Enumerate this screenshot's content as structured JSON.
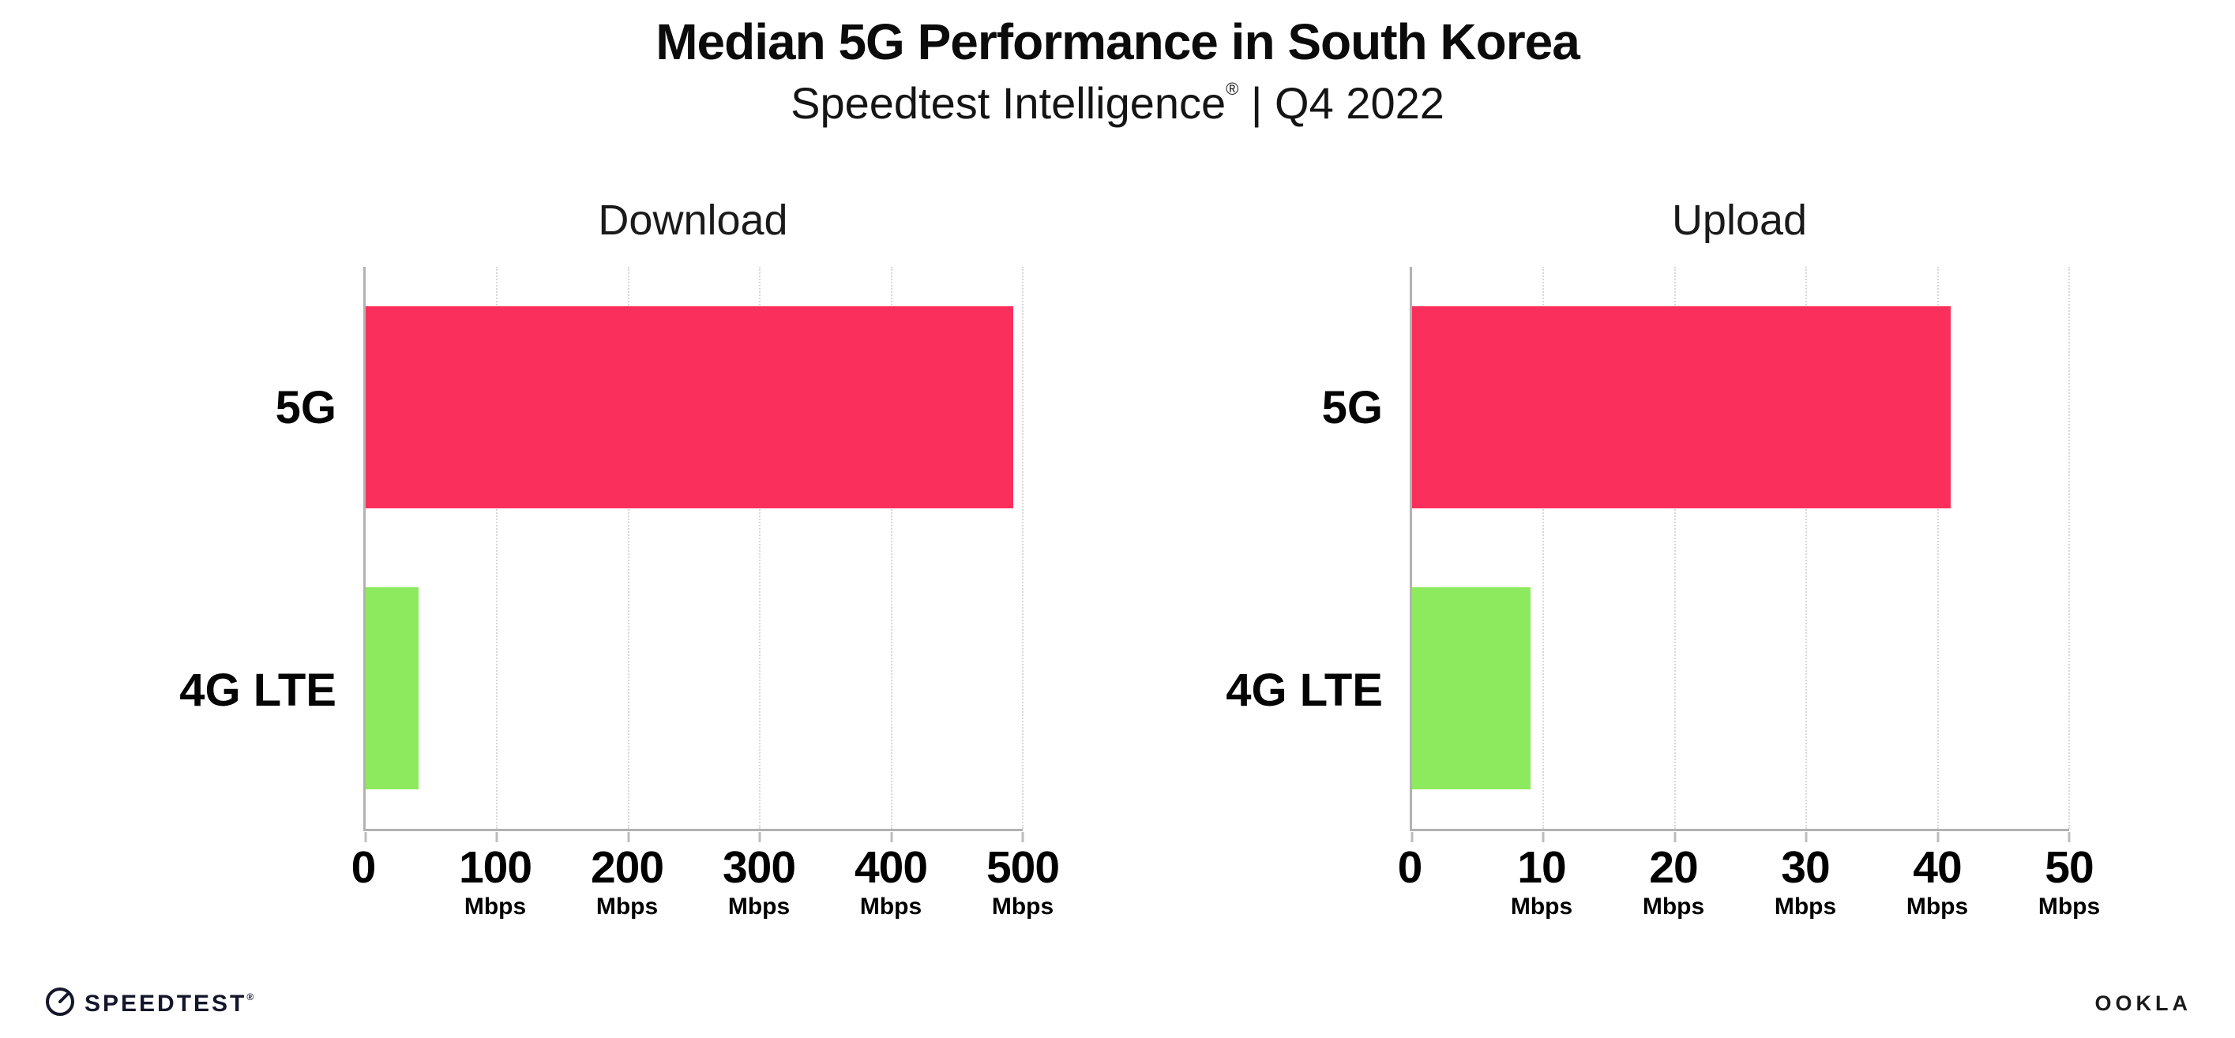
{
  "header": {
    "title": "Median 5G Performance in South Korea",
    "subtitle_brand": "Speedtest Intelligence",
    "subtitle_mark": "®",
    "subtitle_rest": " | Q4 2022"
  },
  "chart_data": [
    {
      "type": "bar",
      "orientation": "horizontal",
      "title": "Download",
      "categories": [
        "5G",
        "4G LTE"
      ],
      "values": [
        493,
        40
      ],
      "unit": "Mbps",
      "xlim": [
        0,
        500
      ],
      "xticks": [
        0,
        100,
        200,
        300,
        400,
        500
      ],
      "bar_colors": [
        "#fb2f5b",
        "#8dea5e"
      ],
      "grid": "vertical-dotted",
      "legend": "none"
    },
    {
      "type": "bar",
      "orientation": "horizontal",
      "title": "Upload",
      "categories": [
        "5G",
        "4G LTE"
      ],
      "values": [
        41,
        9
      ],
      "unit": "Mbps",
      "xlim": [
        0,
        50
      ],
      "xticks": [
        0,
        10,
        20,
        30,
        40,
        50
      ],
      "bar_colors": [
        "#fb2f5b",
        "#8dea5e"
      ],
      "grid": "vertical-dotted",
      "legend": "none"
    }
  ],
  "colors": {
    "bar_5g": "#fb2f5b",
    "bar_4g_lte": "#8dea5e",
    "axis": "#b2b2b2",
    "gridline": "#d8d8d8",
    "text": "#111111"
  },
  "footer": {
    "speedtest_label": "SPEEDTEST",
    "speedtest_mark": "®",
    "ookla_label": "OOKLA"
  }
}
